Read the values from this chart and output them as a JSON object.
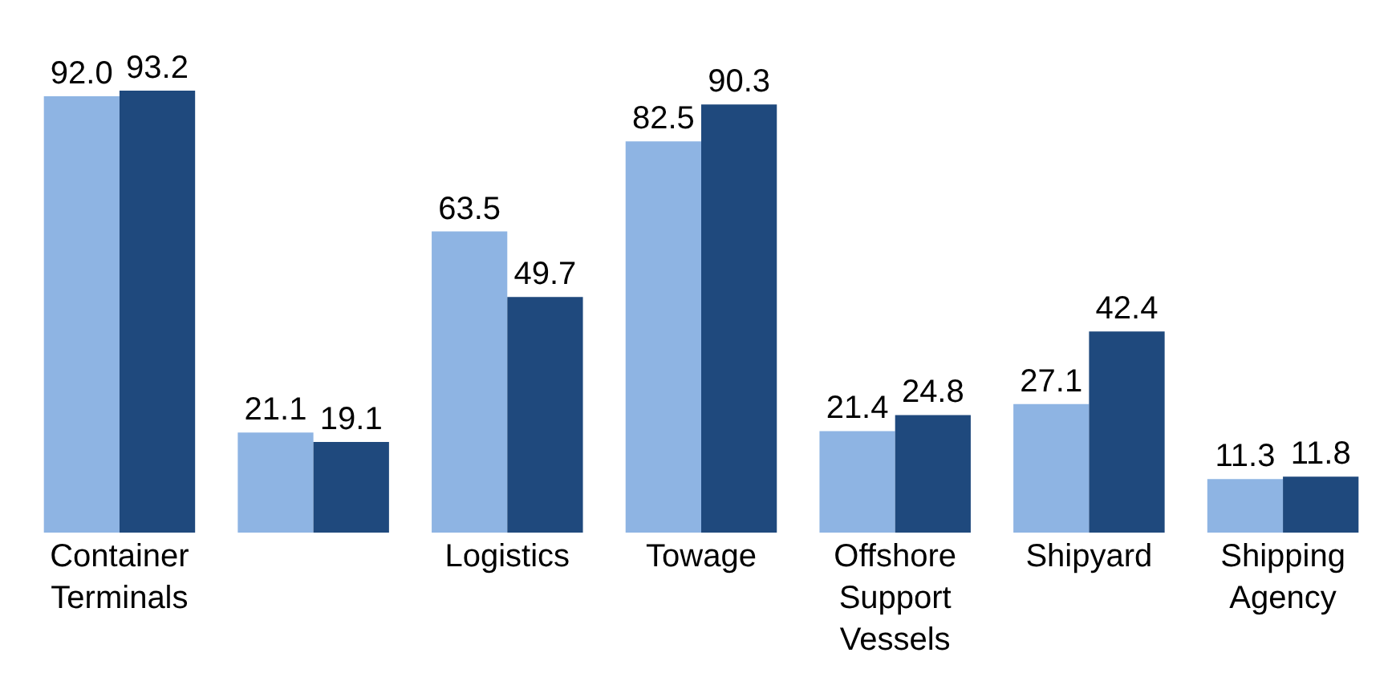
{
  "chart_data": {
    "type": "bar",
    "categories": [
      "Container Terminals",
      null,
      "Logistics",
      "Towage",
      "Offshore Support Vessels",
      "Shipyard",
      "Shipping Agency"
    ],
    "series": [
      {
        "color": "#8eb4e3",
        "values": [
          92.0,
          21.1,
          63.5,
          82.5,
          21.4,
          27.1,
          11.3
        ],
        "value_labels": [
          "92.0",
          "21.1",
          "63.5",
          "82.5",
          "21.4",
          "27.1",
          "11.3"
        ]
      },
      {
        "color": "#1f497d",
        "values": [
          93.2,
          19.1,
          49.7,
          90.3,
          24.8,
          42.4,
          11.8
        ],
        "value_labels": [
          "93.2",
          "19.1",
          "49.7",
          "90.3",
          "24.8",
          "42.4",
          "11.8"
        ]
      }
    ]
  }
}
